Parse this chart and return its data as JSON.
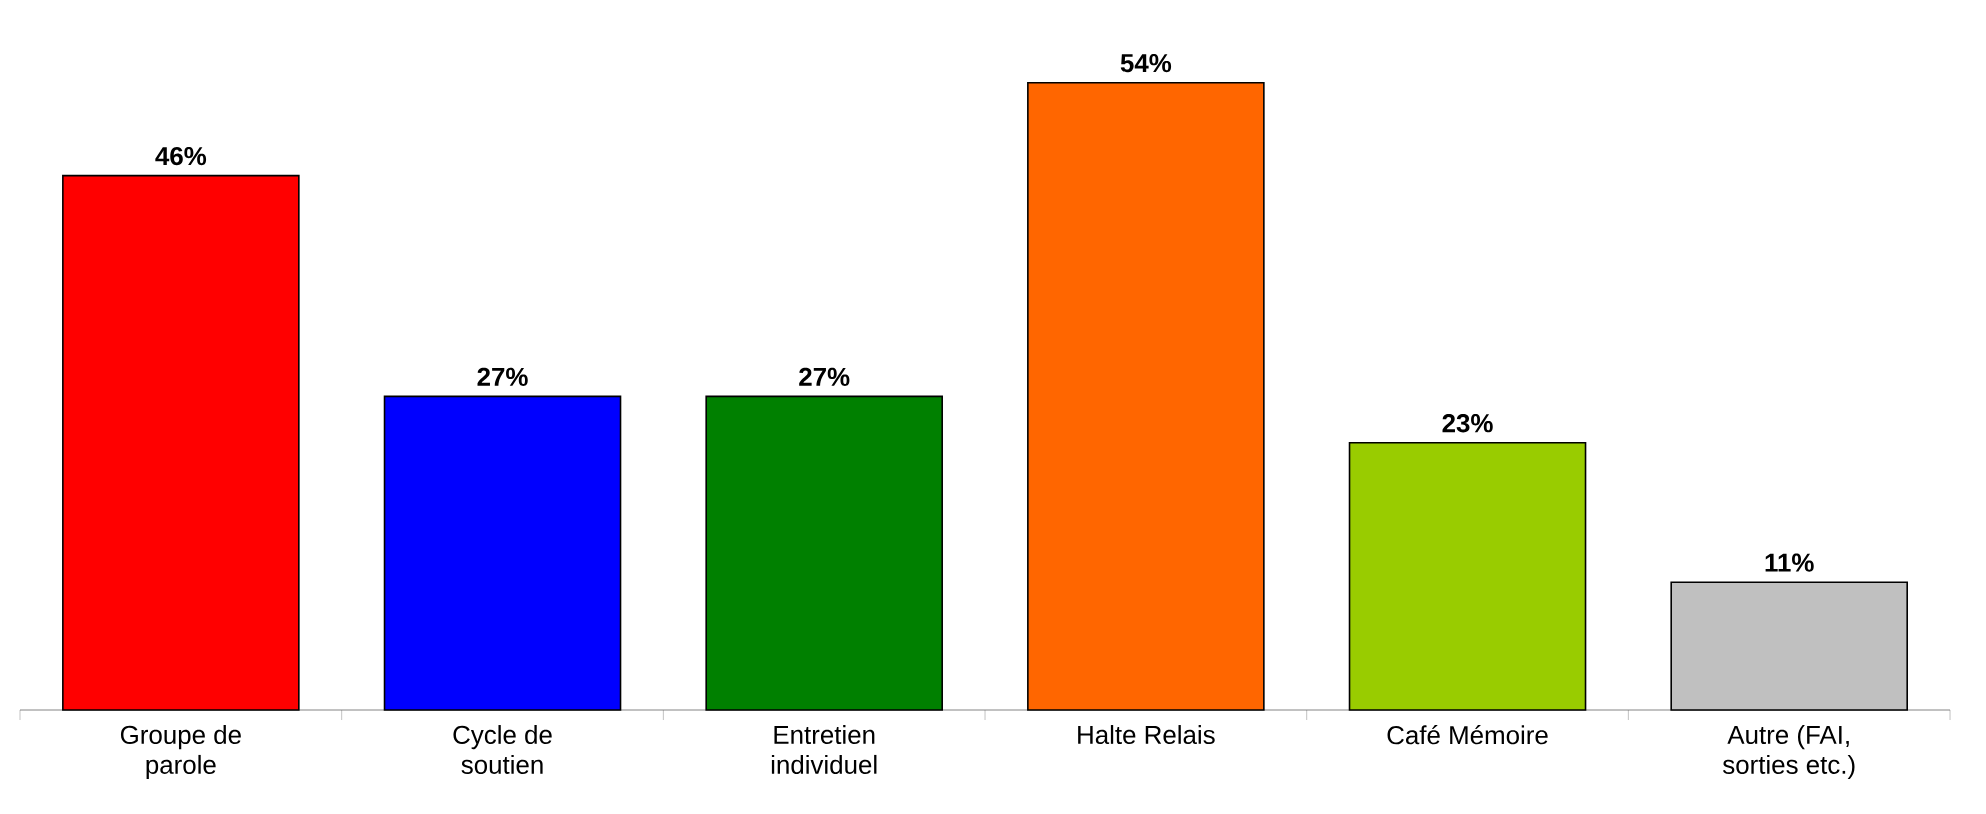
{
  "chart_data": {
    "type": "bar",
    "categories": [
      "Groupe de parole",
      "Cycle de soutien",
      "Entretien individuel",
      "Halte Relais",
      "Café Mémoire",
      "Autre (FAI, sorties etc.)"
    ],
    "values": [
      46,
      27,
      27,
      54,
      23,
      11
    ],
    "colors": [
      "#ff0000",
      "#0000ff",
      "#008000",
      "#ff6600",
      "#99cc00",
      "#c0c0c0"
    ],
    "value_labels": [
      "46%",
      "27%",
      "27%",
      "54%",
      "23%",
      "11%"
    ]
  }
}
